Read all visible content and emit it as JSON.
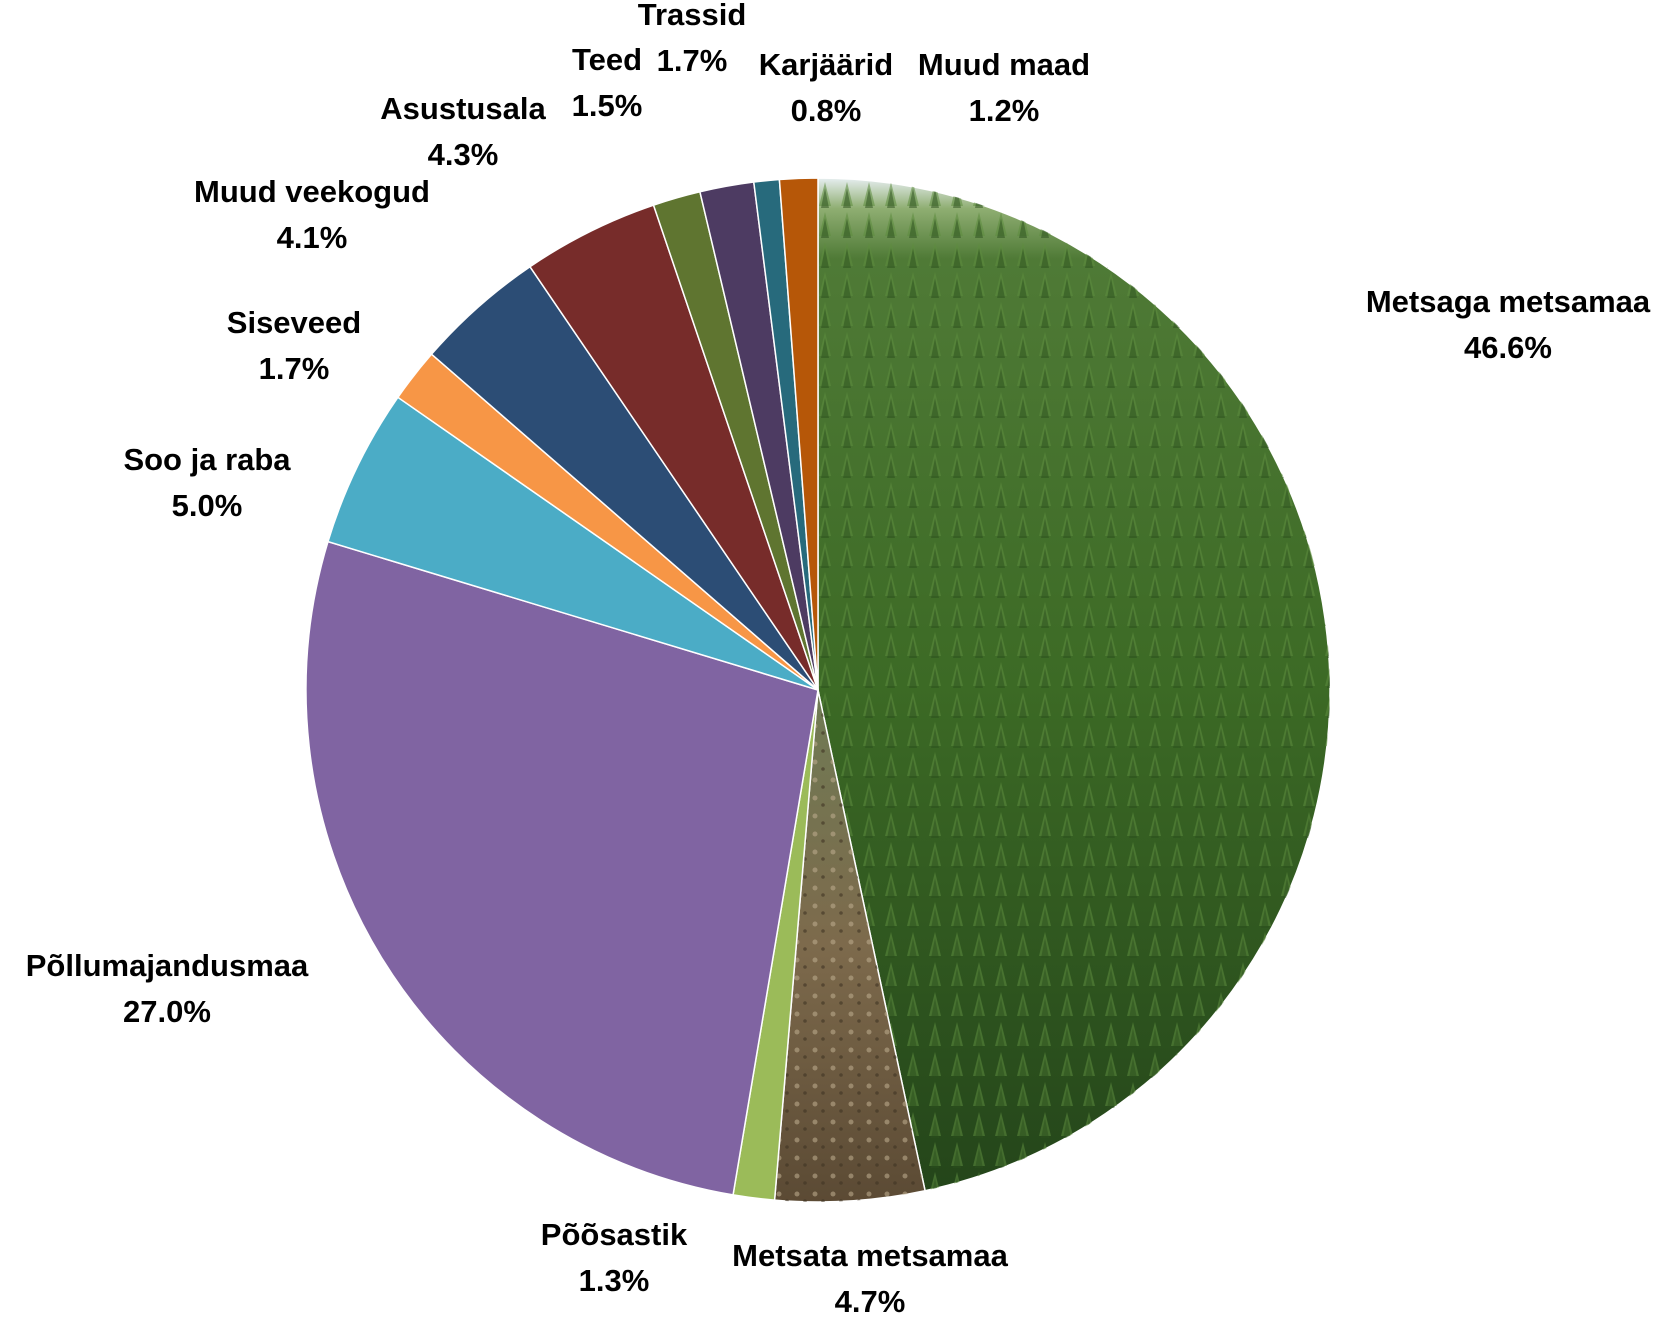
{
  "chart_data": {
    "type": "pie",
    "title": "",
    "start": "12 o'clock",
    "direction": "clockwise",
    "slices": [
      {
        "label": "Metsaga metsamaa",
        "value_label": "46.6%",
        "value": 46.6,
        "color": "#3f6a24",
        "fill": "forest-photo"
      },
      {
        "label": "Metsata metsamaa",
        "value_label": "4.7%",
        "value": 4.7,
        "color": "#7c6a4b",
        "fill": "clearcut-photo"
      },
      {
        "label": "Põõsastik",
        "value_label": "1.3%",
        "value": 1.3,
        "color": "#9bbb59"
      },
      {
        "label": "Põllumajandusmaa",
        "value_label": "27.0%",
        "value": 27.0,
        "color": "#8064a2"
      },
      {
        "label": "Soo ja raba",
        "value_label": "5.0%",
        "value": 5.0,
        "color": "#4bacc6"
      },
      {
        "label": "Siseveed",
        "value_label": "1.7%",
        "value": 1.7,
        "color": "#f79646"
      },
      {
        "label": "Muud veekogud",
        "value_label": "4.1%",
        "value": 4.1,
        "color": "#2c4d75"
      },
      {
        "label": "Asustusala",
        "value_label": "4.3%",
        "value": 4.3,
        "color": "#772c2a"
      },
      {
        "label": "Teed",
        "value_label": "1.5%",
        "value": 1.5,
        "color": "#5f7530"
      },
      {
        "label": "Trassid",
        "value_label": "1.7%",
        "value": 1.7,
        "color": "#4d3b62"
      },
      {
        "label": "Karjäärid",
        "value_label": "0.8%",
        "value": 0.8,
        "color": "#276a7c"
      },
      {
        "label": "Muud maad",
        "value_label": "1.2%",
        "value": 1.2,
        "color": "#b65708"
      }
    ]
  }
}
